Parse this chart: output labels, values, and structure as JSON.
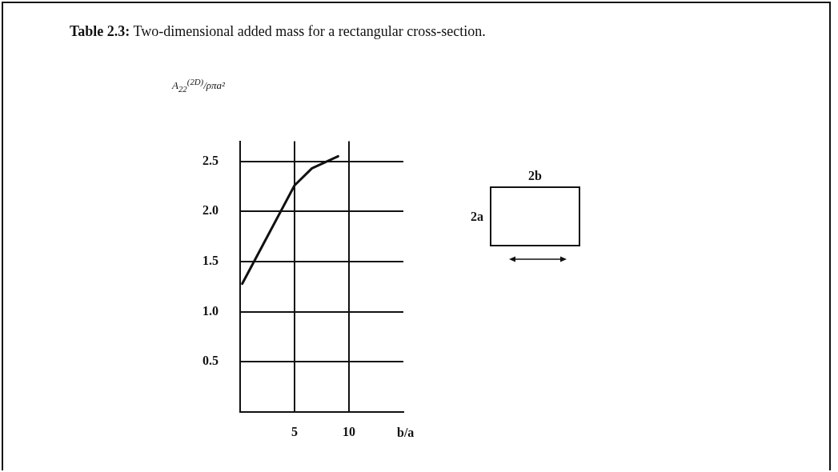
{
  "chart_data": {
    "type": "line",
    "title": "Table 2.3: Two-dimensional added mass for a rectangular cross-section.",
    "xlabel": "b/a",
    "ylabel": "A$_{22}$$^{(2D)}$/ρπa²",
    "annotations": [
      "2b",
      "2a"
    ],
    "x": [
      0.2,
      5,
      6.6,
      9
    ],
    "series": [
      {
        "color": "#111111",
        "values": [
          1.28,
          2.26,
          2.43,
          2.55
        ]
      }
    ],
    "xlim": [
      0,
      15
    ],
    "ylim": [
      0,
      2.7
    ],
    "xticks": [
      5,
      10
    ],
    "yticks": [
      0.5,
      {
        "value": 1,
        "label": "1.0"
      },
      1.5,
      {
        "value": 2,
        "label": "2.0"
      },
      2.5
    ],
    "grid": true,
    "marker": "none",
    "line_style": "solid"
  }
}
